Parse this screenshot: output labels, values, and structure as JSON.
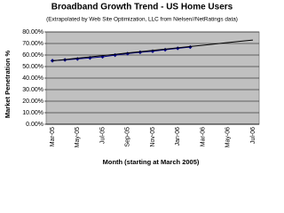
{
  "chart_data": {
    "type": "line",
    "title": "Broadband Growth Trend - US Home Users",
    "subtitle": "(Extrapolated by Web Site Optimization, LLC from Nielsen//NetRatings data)",
    "x_label": "Month (starting at March 2005)",
    "y_label": "Market Penetration %",
    "categories": [
      "Mar-05",
      null,
      "May-05",
      null,
      "Jul-05",
      null,
      "Sep-05",
      null,
      "Nov-05",
      null,
      "Jan-06",
      null,
      "Mar-06",
      null,
      "May-06",
      null,
      "Jul-06"
    ],
    "series": [
      {
        "color": "#000080",
        "marker": true,
        "values": [
          55.1,
          55.8,
          56.6,
          57.5,
          58.5,
          59.9,
          61.2,
          62.4,
          63.3,
          64.6,
          65.8,
          66.9,
          null,
          null,
          null,
          null,
          null
        ]
      },
      {
        "color": "#000000",
        "marker": false,
        "values": [
          55,
          56.1,
          57.3,
          58.4,
          59.5,
          60.6,
          61.8,
          62.9,
          64,
          65.1,
          66.3,
          67.4,
          68.5,
          69.6,
          70.8,
          71.9,
          73
        ]
      }
    ],
    "ylim": [
      0,
      80
    ],
    "yticks": [
      {
        "value": 0,
        "label": "0.00%"
      },
      {
        "value": 10,
        "label": "10.00%"
      },
      {
        "value": 20,
        "label": "20.00%"
      },
      {
        "value": 30,
        "label": "30.00%"
      },
      {
        "value": 40,
        "label": "40.00%"
      },
      {
        "value": 50,
        "label": "50.00%"
      },
      {
        "value": 60,
        "label": "60.00%"
      },
      {
        "value": 70,
        "label": "70.00%"
      },
      {
        "value": 80,
        "label": "80.00%"
      }
    ],
    "grid": true,
    "plot_background": "#c0c0c0"
  }
}
